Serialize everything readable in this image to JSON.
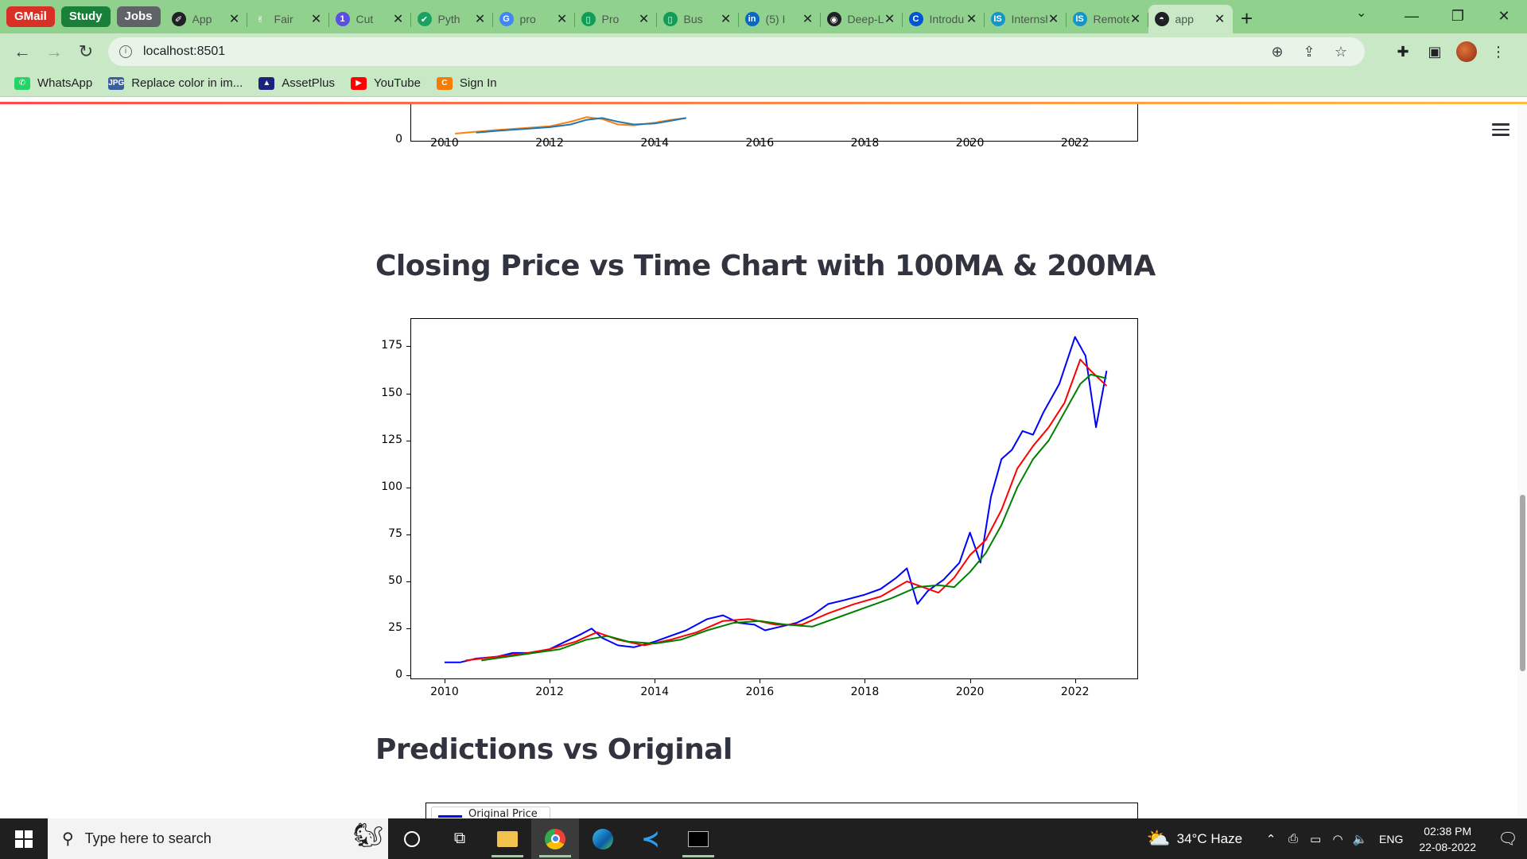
{
  "tab_groups": [
    {
      "label": "GMail",
      "color": "#d93025"
    },
    {
      "label": "Study",
      "color": "#188038"
    },
    {
      "label": "Jobs",
      "color": "#5f6368"
    }
  ],
  "tabs": [
    {
      "title": "App",
      "icon": "app-icon",
      "icon_color": "#202124",
      "glyph": "✐"
    },
    {
      "title": "Fair",
      "icon": "hand-icon",
      "icon_color": "#8fd18d",
      "glyph": "✌"
    },
    {
      "title": "Cut",
      "icon": "number-badge-icon",
      "icon_color": "#5b4ee0",
      "glyph": "1"
    },
    {
      "title": "Pyth",
      "icon": "check-icon",
      "icon_color": "#1aa260",
      "glyph": "✔"
    },
    {
      "title": "pro",
      "icon": "google-icon",
      "icon_color": "#4285f4",
      "glyph": "G"
    },
    {
      "title": "Pro",
      "icon": "sheets-icon",
      "icon_color": "#0f9d58",
      "glyph": "▯"
    },
    {
      "title": "Bus",
      "icon": "sheets-icon",
      "icon_color": "#0f9d58",
      "glyph": "▯"
    },
    {
      "title": "(5) I",
      "icon": "linkedin-icon",
      "icon_color": "#0a66c2",
      "glyph": "in"
    },
    {
      "title": "Deep-Le",
      "icon": "github-icon",
      "icon_color": "#202124",
      "glyph": "◉"
    },
    {
      "title": "Introdu",
      "icon": "coursera-icon",
      "icon_color": "#0056d2",
      "glyph": "C"
    },
    {
      "title": "Internsh",
      "icon": "internshala-icon",
      "icon_color": "#1295c9",
      "glyph": "IS"
    },
    {
      "title": "Remote",
      "icon": "internshala-icon",
      "icon_color": "#1295c9",
      "glyph": "IS"
    },
    {
      "title": "app",
      "icon": "streamlit-icon",
      "icon_color": "#202124",
      "glyph": "◓",
      "active": true
    }
  ],
  "address_bar": {
    "url": "localhost:8501"
  },
  "bookmarks": [
    {
      "label": "WhatsApp",
      "icon": "whatsapp-icon",
      "color": "#25d366",
      "glyph": "✆"
    },
    {
      "label": "Replace color in im...",
      "icon": "jpg-icon",
      "color": "#3a5fa0",
      "glyph": "JPG"
    },
    {
      "label": "AssetPlus",
      "icon": "assetplus-icon",
      "color": "#1a237e",
      "glyph": "▲"
    },
    {
      "label": "YouTube",
      "icon": "youtube-icon",
      "color": "#ff0000",
      "glyph": "▶"
    },
    {
      "label": "Sign In",
      "icon": "signin-icon",
      "color": "#f57c00",
      "glyph": "C"
    }
  ],
  "page": {
    "heading_ma": "Closing Price vs Time Chart with 100MA & 200MA",
    "heading_pred": "Predictions vs Original",
    "pred_legend_label": "Original Price"
  },
  "chart_data": [
    {
      "type": "line",
      "partially_visible": true,
      "x_ticks": [
        "2010",
        "2012",
        "2014",
        "2016",
        "2018",
        "2020",
        "2022"
      ],
      "y_ticks": [
        "0"
      ],
      "series": [
        {
          "color": "#ff7f0e",
          "x": [
            2010.2,
            2010.6,
            2011.0,
            2011.5,
            2012.0,
            2012.4,
            2012.7,
            2013.0,
            2013.3,
            2013.6,
            2014.0,
            2014.3,
            2014.6
          ],
          "y": [
            7,
            9,
            11,
            13,
            15,
            20,
            25,
            23,
            17,
            16,
            19,
            22,
            24
          ]
        },
        {
          "color": "#1f77b4",
          "x": [
            2010.6,
            2011.0,
            2011.5,
            2012.0,
            2012.4,
            2012.7,
            2013.0,
            2013.3,
            2013.6,
            2014.0,
            2014.3,
            2014.6
          ],
          "y": [
            8,
            10,
            12,
            14,
            17,
            22,
            24,
            20,
            17,
            18,
            21,
            24
          ]
        }
      ]
    },
    {
      "type": "line",
      "x_ticks": [
        "2010",
        "2012",
        "2014",
        "2016",
        "2018",
        "2020",
        "2022"
      ],
      "y_ticks": [
        "0",
        "25",
        "50",
        "75",
        "100",
        "125",
        "150",
        "175"
      ],
      "xlim": [
        2009.35,
        2023.2
      ],
      "ylim": [
        -2,
        190
      ],
      "series": [
        {
          "color": "#0000ff",
          "x": [
            2010.0,
            2010.3,
            2010.6,
            2011.0,
            2011.3,
            2011.6,
            2012.0,
            2012.3,
            2012.6,
            2012.8,
            2013.0,
            2013.3,
            2013.6,
            2014.0,
            2014.3,
            2014.6,
            2015.0,
            2015.3,
            2015.6,
            2015.9,
            2016.1,
            2016.4,
            2016.7,
            2017.0,
            2017.3,
            2017.6,
            2018.0,
            2018.3,
            2018.6,
            2018.8,
            2019.0,
            2019.2,
            2019.5,
            2019.8,
            2020.0,
            2020.2,
            2020.4,
            2020.6,
            2020.8,
            2021.0,
            2021.2,
            2021.4,
            2021.7,
            2022.0,
            2022.2,
            2022.4,
            2022.6
          ],
          "y": [
            7,
            7,
            9,
            10,
            12,
            12,
            14,
            18,
            22,
            25,
            20,
            16,
            15,
            18,
            21,
            24,
            30,
            32,
            28,
            27,
            24,
            26,
            28,
            32,
            38,
            40,
            43,
            46,
            52,
            57,
            38,
            45,
            51,
            60,
            76,
            60,
            95,
            115,
            120,
            130,
            128,
            140,
            155,
            180,
            170,
            132,
            162
          ]
        },
        {
          "color": "#ff0000",
          "x": [
            2010.4,
            2011.0,
            2011.6,
            2012.0,
            2012.5,
            2012.9,
            2013.3,
            2013.8,
            2014.3,
            2014.8,
            2015.3,
            2015.8,
            2016.3,
            2016.8,
            2017.3,
            2017.8,
            2018.3,
            2018.8,
            2019.1,
            2019.4,
            2019.7,
            2020.0,
            2020.3,
            2020.6,
            2020.9,
            2021.2,
            2021.5,
            2021.8,
            2022.1,
            2022.3,
            2022.6
          ],
          "y": [
            8,
            10,
            12,
            14,
            18,
            23,
            19,
            16,
            19,
            23,
            29,
            30,
            27,
            27,
            33,
            38,
            42,
            50,
            47,
            44,
            52,
            64,
            72,
            88,
            110,
            122,
            132,
            145,
            168,
            162,
            154
          ]
        },
        {
          "color": "#008000",
          "x": [
            2010.7,
            2011.2,
            2011.7,
            2012.2,
            2012.7,
            2013.1,
            2013.5,
            2014.0,
            2014.5,
            2015.0,
            2015.5,
            2016.0,
            2016.5,
            2017.0,
            2017.5,
            2018.0,
            2018.5,
            2019.0,
            2019.4,
            2019.7,
            2020.0,
            2020.3,
            2020.6,
            2020.9,
            2021.2,
            2021.5,
            2021.8,
            2022.1,
            2022.3,
            2022.6
          ],
          "y": [
            8,
            10,
            12,
            14,
            19,
            21,
            18,
            17,
            19,
            24,
            28,
            29,
            27,
            26,
            31,
            36,
            41,
            47,
            48,
            47,
            55,
            65,
            80,
            100,
            115,
            125,
            140,
            155,
            160,
            158
          ]
        }
      ]
    }
  ],
  "taskbar": {
    "search_placeholder": "Type here to search",
    "weather": "34°C  Haze",
    "language": "ENG",
    "time": "02:38 PM",
    "date": "22-08-2022"
  }
}
